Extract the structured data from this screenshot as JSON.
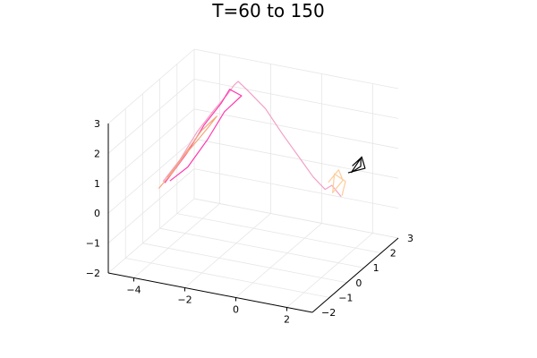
{
  "chart_data": {
    "type": "line3d",
    "title": "T=60 to 150",
    "xlabel": "",
    "ylabel": "",
    "zlabel": "",
    "xlim": [
      -5,
      3
    ],
    "ylim": [
      -2,
      3
    ],
    "zlim": [
      -2,
      3
    ],
    "x_ticks": [
      -4,
      -2,
      0,
      2
    ],
    "y_ticks": [
      -2,
      -1,
      0,
      1,
      2,
      3
    ],
    "z_ticks": [
      -2,
      -1,
      0,
      1,
      2,
      3
    ],
    "x_tick_labels": [
      "−4",
      "−2",
      "0",
      "2"
    ],
    "y_tick_labels": [
      "−2",
      "−1",
      "0",
      "1",
      "2",
      "3"
    ],
    "z_tick_labels": [
      "−2",
      "−1",
      "0",
      "1",
      "2",
      "3"
    ],
    "grid": true,
    "legend": "none",
    "series": [
      {
        "color": "#f2a1c6",
        "points": [
          [
            -4.2,
            0.0,
            0.2
          ],
          [
            -3.8,
            0.4,
            0.8
          ],
          [
            -3.4,
            0.8,
            1.6
          ],
          [
            -3.0,
            1.2,
            2.2
          ],
          [
            -2.7,
            1.5,
            2.6
          ],
          [
            -2.5,
            1.6,
            2.9
          ],
          [
            -2.4,
            1.7,
            3.0
          ],
          [
            -2.1,
            1.8,
            2.7
          ],
          [
            -1.4,
            1.8,
            2.2
          ],
          [
            -0.8,
            1.9,
            1.4
          ],
          [
            -0.3,
            2.2,
            0.5
          ],
          [
            0.0,
            2.5,
            -0.2
          ],
          [
            0.4,
            2.6,
            -0.6
          ],
          [
            0.8,
            2.4,
            -0.3
          ],
          [
            1.3,
            2.2,
            -0.5
          ]
        ]
      },
      {
        "color": "#ff3ab0",
        "points": [
          [
            -4.2,
            0.1,
            0.1
          ],
          [
            -3.6,
            0.5,
            1.0
          ],
          [
            -3.2,
            0.9,
            1.8
          ],
          [
            -2.8,
            1.3,
            2.4
          ],
          [
            -2.6,
            1.5,
            2.8
          ],
          [
            -2.2,
            1.6,
            2.6
          ],
          [
            -2.6,
            1.2,
            2.2
          ],
          [
            -3.0,
            0.8,
            1.4
          ],
          [
            -3.5,
            0.4,
            0.6
          ],
          [
            -4.0,
            0.1,
            0.2
          ]
        ]
      },
      {
        "color": "#f5a57a",
        "points": [
          [
            -4.3,
            -0.1,
            0.0
          ],
          [
            -4.0,
            0.2,
            0.4
          ],
          [
            -3.7,
            0.5,
            0.9
          ],
          [
            -3.4,
            0.8,
            1.3
          ],
          [
            -3.1,
            1.0,
            1.7
          ],
          [
            -2.9,
            1.2,
            2.0
          ],
          [
            -3.3,
            0.9,
            1.6
          ],
          [
            -3.6,
            0.6,
            1.1
          ],
          [
            -3.9,
            0.3,
            0.6
          ],
          [
            -4.1,
            0.1,
            0.3
          ]
        ]
      },
      {
        "color": "#ffcc99",
        "points": [
          [
            0.8,
            2.2,
            -0.1
          ],
          [
            1.0,
            2.5,
            0.2
          ],
          [
            1.3,
            2.3,
            0.0
          ],
          [
            1.1,
            2.0,
            -0.3
          ],
          [
            0.9,
            2.4,
            0.1
          ],
          [
            1.2,
            2.6,
            -0.2
          ],
          [
            1.4,
            2.1,
            -0.4
          ]
        ]
      },
      {
        "color": "#000000",
        "points": [
          [
            1.4,
            2.7,
            0.3
          ],
          [
            1.6,
            2.9,
            0.5
          ],
          [
            1.8,
            2.6,
            0.4
          ],
          [
            1.5,
            2.5,
            0.2
          ],
          [
            1.7,
            2.8,
            0.6
          ],
          [
            1.9,
            2.7,
            0.3
          ],
          [
            1.3,
            2.6,
            0.1
          ]
        ]
      }
    ]
  }
}
